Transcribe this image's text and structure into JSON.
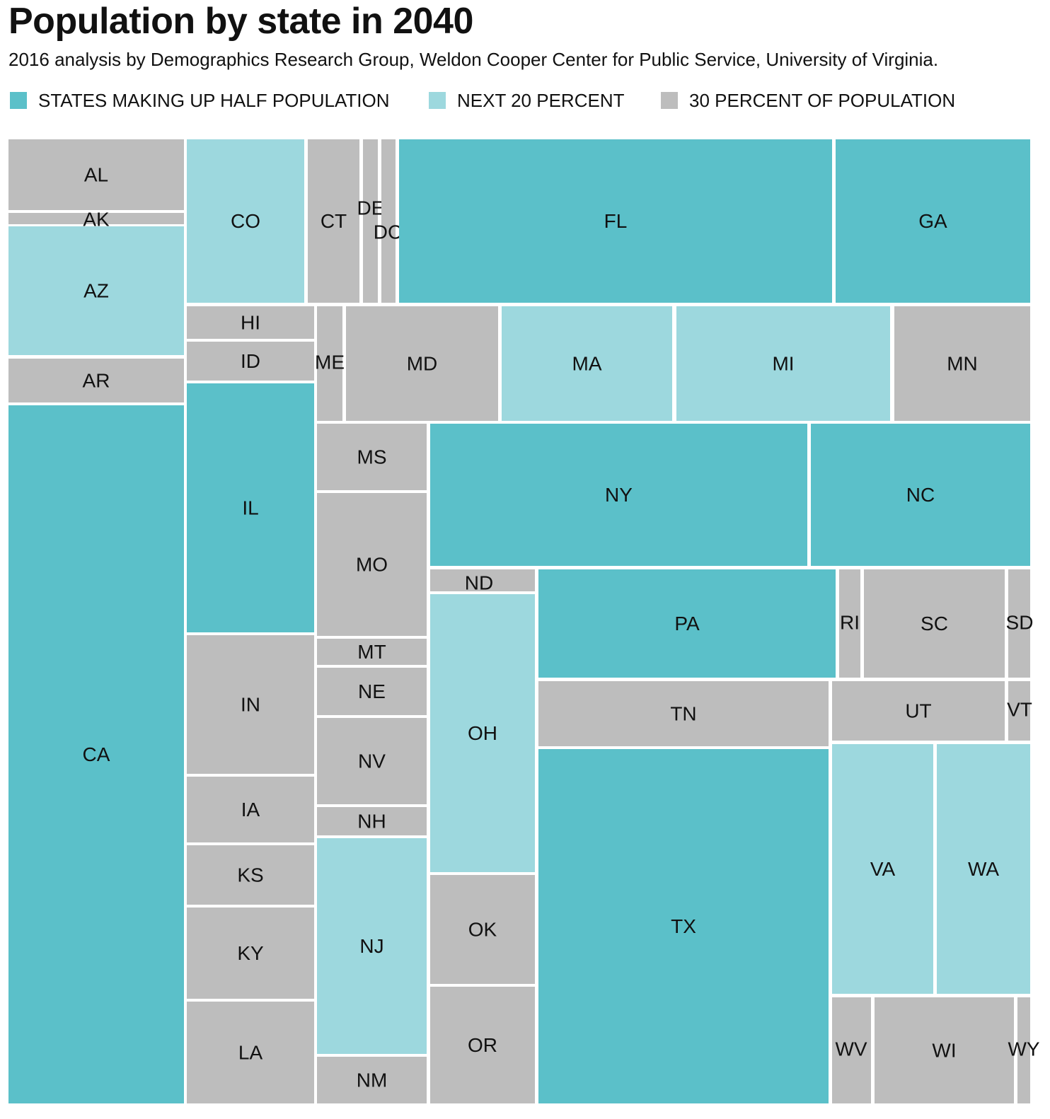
{
  "title": "Population by state in 2040",
  "subtitle": "2016 analysis by Demographics Research Group, Weldon Cooper Center for Public Service, University of Virginia.",
  "legend": [
    {
      "label": "STATES MAKING UP HALF POPULATION",
      "color": "#5bc0c9",
      "group": "half"
    },
    {
      "label": "NEXT 20 PERCENT",
      "color": "#9dd8de",
      "group": "next20"
    },
    {
      "label": "30 PERCENT OF POPULATION",
      "color": "#bdbdbd",
      "group": "rest30"
    }
  ],
  "chart_data": {
    "type": "treemap",
    "title": "Population by state in 2040",
    "subtitle": "2016 analysis by Demographics Research Group, Weldon Cooper Center for Public Service, University of Virginia.",
    "groups": {
      "half": {
        "label": "STATES MAKING UP HALF POPULATION",
        "color": "#5bc0c9"
      },
      "next20": {
        "label": "NEXT 20 PERCENT",
        "color": "#9dd8de"
      },
      "rest30": {
        "label": "30 PERCENT OF POPULATION",
        "color": "#bdbdbd"
      }
    },
    "states": [
      {
        "label": "AL",
        "group": "rest30"
      },
      {
        "label": "AK",
        "group": "rest30"
      },
      {
        "label": "AZ",
        "group": "next20"
      },
      {
        "label": "AR",
        "group": "rest30"
      },
      {
        "label": "CA",
        "group": "half"
      },
      {
        "label": "CO",
        "group": "next20"
      },
      {
        "label": "CT",
        "group": "rest30"
      },
      {
        "label": "DE",
        "group": "rest30"
      },
      {
        "label": "DC",
        "group": "rest30"
      },
      {
        "label": "FL",
        "group": "half"
      },
      {
        "label": "GA",
        "group": "half"
      },
      {
        "label": "HI",
        "group": "rest30"
      },
      {
        "label": "ID",
        "group": "rest30"
      },
      {
        "label": "IL",
        "group": "half"
      },
      {
        "label": "IN",
        "group": "rest30"
      },
      {
        "label": "IA",
        "group": "rest30"
      },
      {
        "label": "KS",
        "group": "rest30"
      },
      {
        "label": "KY",
        "group": "rest30"
      },
      {
        "label": "LA",
        "group": "rest30"
      },
      {
        "label": "ME",
        "group": "rest30"
      },
      {
        "label": "MD",
        "group": "rest30"
      },
      {
        "label": "MA",
        "group": "next20"
      },
      {
        "label": "MI",
        "group": "next20"
      },
      {
        "label": "MN",
        "group": "rest30"
      },
      {
        "label": "MS",
        "group": "rest30"
      },
      {
        "label": "MO",
        "group": "rest30"
      },
      {
        "label": "MT",
        "group": "rest30"
      },
      {
        "label": "NE",
        "group": "rest30"
      },
      {
        "label": "NV",
        "group": "rest30"
      },
      {
        "label": "NH",
        "group": "rest30"
      },
      {
        "label": "NJ",
        "group": "next20"
      },
      {
        "label": "NM",
        "group": "rest30"
      },
      {
        "label": "NY",
        "group": "half"
      },
      {
        "label": "NC",
        "group": "half"
      },
      {
        "label": "ND",
        "group": "rest30"
      },
      {
        "label": "OH",
        "group": "next20"
      },
      {
        "label": "OK",
        "group": "rest30"
      },
      {
        "label": "OR",
        "group": "rest30"
      },
      {
        "label": "PA",
        "group": "half"
      },
      {
        "label": "RI",
        "group": "rest30"
      },
      {
        "label": "SC",
        "group": "rest30"
      },
      {
        "label": "SD",
        "group": "rest30"
      },
      {
        "label": "TN",
        "group": "rest30"
      },
      {
        "label": "TX",
        "group": "half"
      },
      {
        "label": "UT",
        "group": "rest30"
      },
      {
        "label": "VT",
        "group": "rest30"
      },
      {
        "label": "VA",
        "group": "next20"
      },
      {
        "label": "WA",
        "group": "next20"
      },
      {
        "label": "WV",
        "group": "rest30"
      },
      {
        "label": "WI",
        "group": "rest30"
      },
      {
        "label": "WY",
        "group": "rest30"
      }
    ]
  }
}
